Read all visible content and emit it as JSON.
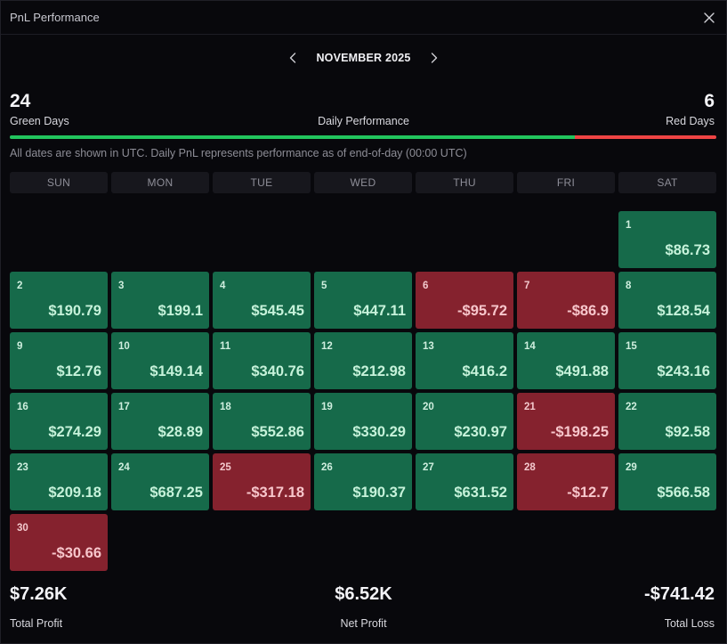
{
  "window": {
    "title": "PnL Performance",
    "close_icon": "close-icon"
  },
  "nav": {
    "month": "NOVEMBER 2025",
    "prev_icon": "chevron-left-icon",
    "next_icon": "chevron-right-icon"
  },
  "summary": {
    "green_days": "24",
    "green_label": "Green Days",
    "performance_label": "Daily Performance",
    "red_days": "6",
    "red_label": "Red Days",
    "green_ratio": 0.8,
    "note": "All dates are shown in UTC. Daily PnL represents performance as of end-of-day (00:00 UTC)"
  },
  "colors": {
    "green": "#22c55e",
    "red": "#ef4444",
    "positive_cell": "#166a4a",
    "negative_cell": "#85222e"
  },
  "weekdays": [
    "SUN",
    "MON",
    "TUE",
    "WED",
    "THU",
    "FRI",
    "SAT"
  ],
  "calendar": {
    "leading_blanks": 6,
    "days": [
      {
        "day": "1",
        "pnl": "$86.73",
        "sign": "pos"
      },
      {
        "day": "2",
        "pnl": "$190.79",
        "sign": "pos"
      },
      {
        "day": "3",
        "pnl": "$199.1",
        "sign": "pos"
      },
      {
        "day": "4",
        "pnl": "$545.45",
        "sign": "pos"
      },
      {
        "day": "5",
        "pnl": "$447.11",
        "sign": "pos"
      },
      {
        "day": "6",
        "pnl": "-$95.72",
        "sign": "neg"
      },
      {
        "day": "7",
        "pnl": "-$86.9",
        "sign": "neg"
      },
      {
        "day": "8",
        "pnl": "$128.54",
        "sign": "pos"
      },
      {
        "day": "9",
        "pnl": "$12.76",
        "sign": "pos"
      },
      {
        "day": "10",
        "pnl": "$149.14",
        "sign": "pos"
      },
      {
        "day": "11",
        "pnl": "$340.76",
        "sign": "pos"
      },
      {
        "day": "12",
        "pnl": "$212.98",
        "sign": "pos"
      },
      {
        "day": "13",
        "pnl": "$416.2",
        "sign": "pos"
      },
      {
        "day": "14",
        "pnl": "$491.88",
        "sign": "pos"
      },
      {
        "day": "15",
        "pnl": "$243.16",
        "sign": "pos"
      },
      {
        "day": "16",
        "pnl": "$274.29",
        "sign": "pos"
      },
      {
        "day": "17",
        "pnl": "$28.89",
        "sign": "pos"
      },
      {
        "day": "18",
        "pnl": "$552.86",
        "sign": "pos"
      },
      {
        "day": "19",
        "pnl": "$330.29",
        "sign": "pos"
      },
      {
        "day": "20",
        "pnl": "$230.97",
        "sign": "pos"
      },
      {
        "day": "21",
        "pnl": "-$198.25",
        "sign": "neg"
      },
      {
        "day": "22",
        "pnl": "$92.58",
        "sign": "pos"
      },
      {
        "day": "23",
        "pnl": "$209.18",
        "sign": "pos"
      },
      {
        "day": "24",
        "pnl": "$687.25",
        "sign": "pos"
      },
      {
        "day": "25",
        "pnl": "-$317.18",
        "sign": "neg"
      },
      {
        "day": "26",
        "pnl": "$190.37",
        "sign": "pos"
      },
      {
        "day": "27",
        "pnl": "$631.52",
        "sign": "pos"
      },
      {
        "day": "28",
        "pnl": "-$12.7",
        "sign": "neg"
      },
      {
        "day": "29",
        "pnl": "$566.58",
        "sign": "pos"
      },
      {
        "day": "30",
        "pnl": "-$30.66",
        "sign": "neg"
      }
    ]
  },
  "totals": {
    "total_profit": "$7.26K",
    "total_profit_label": "Total Profit",
    "net_profit": "$6.52K",
    "net_profit_label": "Net Profit",
    "total_loss": "-$741.42",
    "total_loss_label": "Total Loss"
  }
}
